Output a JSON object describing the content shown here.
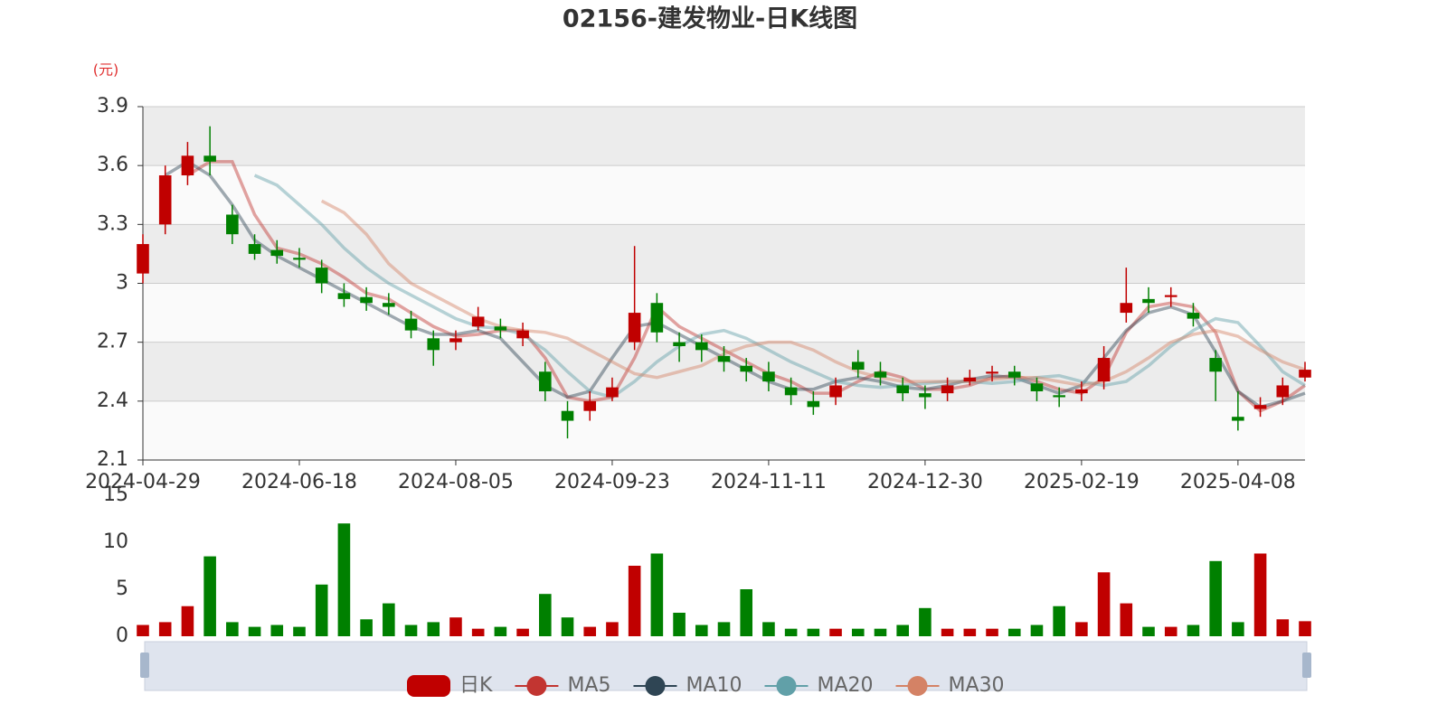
{
  "chart_data": {
    "type": "candlestick",
    "title": "02156-建发物业-日K线图",
    "y_unit": "(元)",
    "candle_name": "日K",
    "up_color": "#c00000",
    "down_color": "#008000",
    "categories": [
      "2024-04-29",
      null,
      null,
      null,
      null,
      null,
      null,
      "2024-06-18",
      null,
      null,
      null,
      null,
      null,
      null,
      "2024-08-05",
      null,
      null,
      null,
      null,
      null,
      null,
      "2024-09-23",
      null,
      null,
      null,
      null,
      null,
      null,
      "2024-11-11",
      null,
      null,
      null,
      null,
      null,
      null,
      "2024-12-30",
      null,
      null,
      null,
      null,
      null,
      null,
      "2025-02-19",
      null,
      null,
      null,
      null,
      null,
      null,
      "2025-04-08",
      null,
      null,
      null
    ],
    "open": [
      3.05,
      3.3,
      3.55,
      3.65,
      3.35,
      3.2,
      3.17,
      3.13,
      3.08,
      2.95,
      2.93,
      2.9,
      2.82,
      2.72,
      2.7,
      2.78,
      2.78,
      2.72,
      2.55,
      2.35,
      2.35,
      2.42,
      2.7,
      2.9,
      2.7,
      2.7,
      2.63,
      2.58,
      2.55,
      2.47,
      2.4,
      2.42,
      2.6,
      2.55,
      2.48,
      2.44,
      2.44,
      2.5,
      2.54,
      2.55,
      2.49,
      2.43,
      2.44,
      2.5,
      2.85,
      2.92,
      2.93,
      2.85,
      2.62,
      2.32,
      2.36,
      2.42,
      2.52
    ],
    "close": [
      3.2,
      3.55,
      3.65,
      3.62,
      3.25,
      3.15,
      3.14,
      3.12,
      3.0,
      2.92,
      2.9,
      2.88,
      2.76,
      2.66,
      2.72,
      2.83,
      2.76,
      2.76,
      2.45,
      2.3,
      2.4,
      2.47,
      2.85,
      2.75,
      2.68,
      2.66,
      2.6,
      2.55,
      2.5,
      2.43,
      2.37,
      2.48,
      2.56,
      2.52,
      2.44,
      2.42,
      2.48,
      2.52,
      2.55,
      2.52,
      2.45,
      2.42,
      2.46,
      2.62,
      2.9,
      2.9,
      2.94,
      2.82,
      2.55,
      2.3,
      2.38,
      2.48,
      2.56
    ],
    "high": [
      3.25,
      3.6,
      3.72,
      3.8,
      3.4,
      3.25,
      3.22,
      3.18,
      3.12,
      3.0,
      2.98,
      2.95,
      2.86,
      2.76,
      2.76,
      2.88,
      2.82,
      2.8,
      2.6,
      2.4,
      2.45,
      2.52,
      3.19,
      2.95,
      2.75,
      2.74,
      2.68,
      2.62,
      2.6,
      2.52,
      2.45,
      2.52,
      2.66,
      2.6,
      2.52,
      2.48,
      2.52,
      2.56,
      2.58,
      2.58,
      2.52,
      2.47,
      2.5,
      2.68,
      3.08,
      2.98,
      2.98,
      2.9,
      2.66,
      2.45,
      2.42,
      2.52,
      2.6
    ],
    "low": [
      3.0,
      3.25,
      3.5,
      3.55,
      3.2,
      3.12,
      3.1,
      3.08,
      2.95,
      2.88,
      2.86,
      2.84,
      2.72,
      2.58,
      2.66,
      2.76,
      2.72,
      2.68,
      2.4,
      2.21,
      2.3,
      2.4,
      2.66,
      2.7,
      2.6,
      2.6,
      2.55,
      2.5,
      2.45,
      2.38,
      2.33,
      2.38,
      2.52,
      2.48,
      2.4,
      2.36,
      2.4,
      2.48,
      2.5,
      2.48,
      2.4,
      2.37,
      2.4,
      2.46,
      2.8,
      2.85,
      2.88,
      2.78,
      2.4,
      2.25,
      2.32,
      2.38,
      2.5
    ],
    "series": [
      {
        "name": "MA5",
        "color": "#c23531",
        "values": [
          null,
          null,
          3.55,
          3.62,
          3.62,
          3.35,
          3.18,
          3.15,
          3.1,
          3.03,
          2.95,
          2.92,
          2.85,
          2.78,
          2.73,
          2.74,
          2.76,
          2.76,
          2.62,
          2.42,
          2.4,
          2.42,
          2.62,
          2.88,
          2.78,
          2.72,
          2.66,
          2.6,
          2.54,
          2.5,
          2.44,
          2.44,
          2.5,
          2.55,
          2.52,
          2.46,
          2.46,
          2.48,
          2.52,
          2.53,
          2.5,
          2.46,
          2.44,
          2.52,
          2.75,
          2.88,
          2.9,
          2.88,
          2.75,
          2.45,
          2.35,
          2.4,
          2.48
        ]
      },
      {
        "name": "MA10",
        "color": "#2f4554",
        "values": [
          null,
          3.55,
          3.62,
          3.55,
          3.4,
          3.22,
          3.14,
          3.08,
          3.02,
          2.96,
          2.9,
          2.84,
          2.78,
          2.74,
          2.74,
          2.76,
          2.72,
          2.6,
          2.48,
          2.42,
          2.45,
          2.62,
          2.78,
          2.8,
          2.74,
          2.68,
          2.62,
          2.56,
          2.5,
          2.46,
          2.46,
          2.5,
          2.52,
          2.5,
          2.47,
          2.46,
          2.48,
          2.51,
          2.53,
          2.52,
          2.48,
          2.44,
          2.48,
          2.62,
          2.76,
          2.85,
          2.88,
          2.84,
          2.65,
          2.45,
          2.37,
          2.4,
          2.44
        ]
      },
      {
        "name": "MA20",
        "color": "#61a0a8",
        "values": [
          null,
          null,
          null,
          null,
          null,
          3.55,
          3.5,
          3.4,
          3.3,
          3.18,
          3.08,
          3.0,
          2.94,
          2.88,
          2.82,
          2.78,
          2.77,
          2.74,
          2.66,
          2.55,
          2.45,
          2.42,
          2.5,
          2.6,
          2.68,
          2.74,
          2.76,
          2.72,
          2.66,
          2.6,
          2.55,
          2.5,
          2.48,
          2.47,
          2.48,
          2.49,
          2.5,
          2.5,
          2.49,
          2.5,
          2.52,
          2.53,
          2.5,
          2.48,
          2.5,
          2.58,
          2.68,
          2.76,
          2.82,
          2.8,
          2.68,
          2.55,
          2.48
        ]
      },
      {
        "name": "MA30",
        "color": "#d48265",
        "values": [
          null,
          null,
          null,
          null,
          null,
          null,
          null,
          null,
          3.42,
          3.36,
          3.25,
          3.1,
          3.0,
          2.94,
          2.88,
          2.82,
          2.78,
          2.76,
          2.75,
          2.72,
          2.66,
          2.6,
          2.54,
          2.52,
          2.55,
          2.58,
          2.64,
          2.68,
          2.7,
          2.7,
          2.66,
          2.6,
          2.55,
          2.52,
          2.5,
          2.5,
          2.5,
          2.5,
          2.51,
          2.52,
          2.52,
          2.5,
          2.48,
          2.5,
          2.55,
          2.62,
          2.7,
          2.74,
          2.76,
          2.73,
          2.66,
          2.6,
          2.56
        ]
      }
    ],
    "ylim": [
      2.1,
      3.9
    ],
    "yticks": [
      2.1,
      2.4,
      2.7,
      3,
      3.3,
      3.6,
      3.9
    ],
    "volume": {
      "values": [
        1.2,
        1.5,
        3.2,
        8.5,
        1.5,
        1.0,
        1.2,
        1.0,
        5.5,
        12,
        1.8,
        3.5,
        1.2,
        1.5,
        2.0,
        0.8,
        1.0,
        0.8,
        4.5,
        2.0,
        1.0,
        1.5,
        7.5,
        8.8,
        2.5,
        1.2,
        1.5,
        5.0,
        1.5,
        0.8,
        0.8,
        0.8,
        0.8,
        0.8,
        1.2,
        3.0,
        0.8,
        0.8,
        0.8,
        0.8,
        1.2,
        3.2,
        1.5,
        6.8,
        3.5,
        1.0,
        1.0,
        1.2,
        8.0,
        1.5,
        8.8,
        1.8,
        1.6
      ],
      "ylim": [
        0,
        15
      ],
      "yticks": [
        0,
        5,
        10,
        15
      ]
    }
  }
}
